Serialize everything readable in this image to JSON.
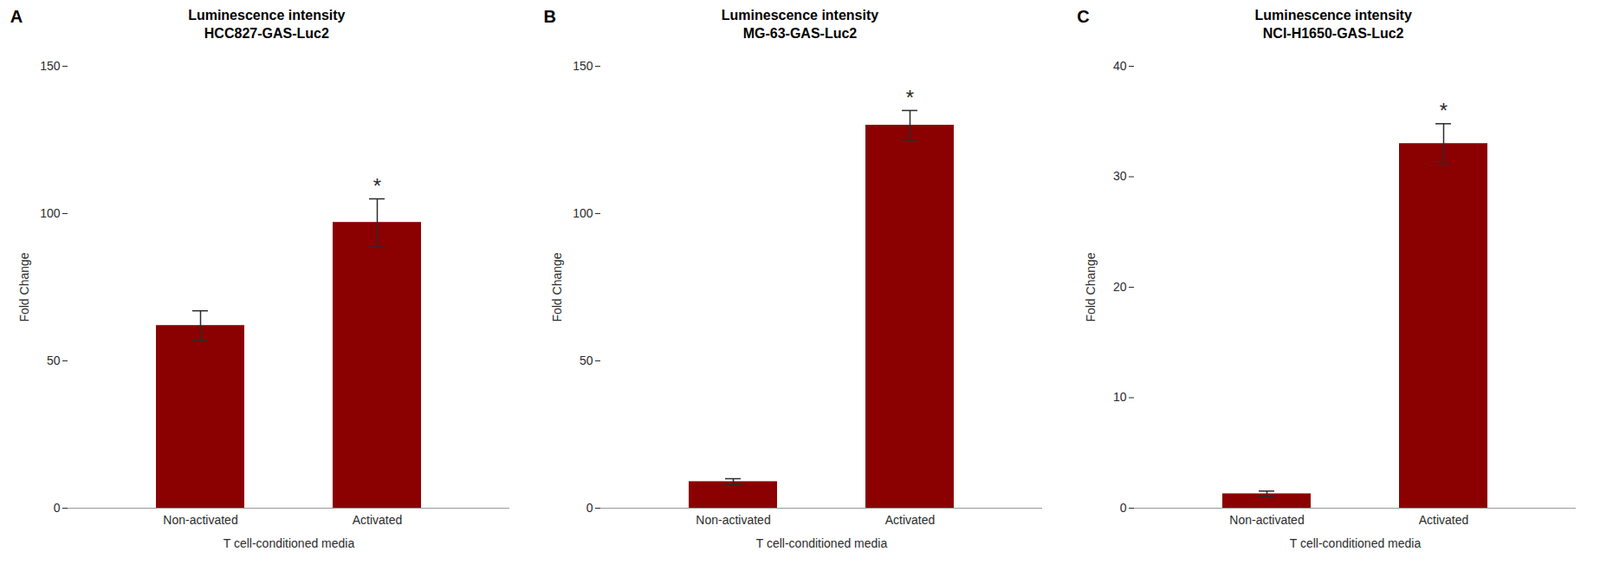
{
  "chart_data": [
    {
      "type": "bar",
      "title": "Luminescence intensity\nHCC827-GAS-Luc2",
      "xlabel": "T cell-conditioned media",
      "ylabel": "Fold Change",
      "categories": [
        "Non-activated",
        "Activated"
      ],
      "values": [
        62,
        97
      ],
      "errors": [
        5,
        8
      ],
      "color": "#8B0000",
      "ylim": [
        0,
        150
      ],
      "yticks": [
        0,
        50,
        100,
        150
      ],
      "grid": false,
      "annotations": [
        {
          "text": "A"
        },
        {
          "text": "*",
          "category": "Activated"
        }
      ]
    },
    {
      "type": "bar",
      "title": "Luminescence intensity\nMG-63-GAS-Luc2",
      "xlabel": "T cell-conditioned media",
      "ylabel": "Fold Change",
      "categories": [
        "Non-activated",
        "Activated"
      ],
      "values": [
        9,
        130
      ],
      "errors": [
        1,
        5
      ],
      "color": "#8B0000",
      "ylim": [
        0,
        150
      ],
      "yticks": [
        0,
        50,
        100,
        150
      ],
      "grid": false,
      "annotations": [
        {
          "text": "B"
        },
        {
          "text": "*",
          "category": "Activated"
        }
      ]
    },
    {
      "type": "bar",
      "title": "Luminescence intensity\nNCI-H1650-GAS-Luc2",
      "xlabel": "T cell-conditioned media",
      "ylabel": "Fold Change",
      "categories": [
        "Non-activated",
        "Activated"
      ],
      "values": [
        1.3,
        33
      ],
      "errors": [
        0.25,
        1.8
      ],
      "color": "#8B0000",
      "ylim": [
        0,
        40
      ],
      "yticks": [
        0,
        10,
        20,
        30,
        40
      ],
      "grid": false,
      "annotations": [
        {
          "text": "C"
        },
        {
          "text": "*",
          "category": "Activated"
        }
      ]
    }
  ]
}
